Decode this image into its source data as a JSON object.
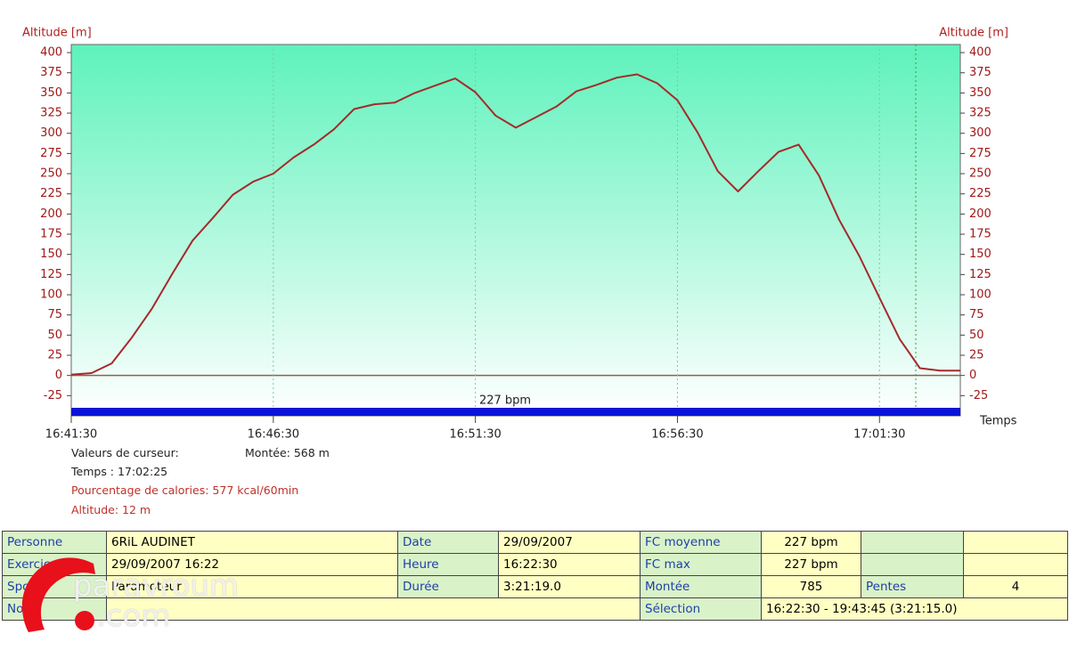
{
  "chart_data": {
    "type": "line",
    "y_label": "Altitude [m]",
    "y2_label": "Altitude [m]",
    "x_label": "Temps",
    "x": [
      "16:41:30",
      "16:42:00",
      "16:42:30",
      "16:43:00",
      "16:43:30",
      "16:44:00",
      "16:44:30",
      "16:45:00",
      "16:45:30",
      "16:46:00",
      "16:46:30",
      "16:47:00",
      "16:47:30",
      "16:48:00",
      "16:48:30",
      "16:49:00",
      "16:49:30",
      "16:50:00",
      "16:50:30",
      "16:51:00",
      "16:51:30",
      "16:52:00",
      "16:52:30",
      "16:53:00",
      "16:53:30",
      "16:54:00",
      "16:54:30",
      "16:55:00",
      "16:55:30",
      "16:56:00",
      "16:56:30",
      "16:57:00",
      "16:57:30",
      "16:58:00",
      "16:58:30",
      "16:59:00",
      "16:59:30",
      "17:00:00",
      "17:00:30",
      "17:01:00",
      "17:01:30",
      "17:02:00",
      "17:02:30",
      "17:03:00",
      "17:03:30"
    ],
    "values": [
      1,
      3,
      15,
      47,
      83,
      126,
      167,
      195,
      224,
      240,
      250,
      270,
      286,
      305,
      330,
      336,
      338,
      350,
      359,
      368,
      351,
      322,
      307,
      320,
      333,
      352,
      360,
      369,
      373,
      362,
      341,
      301,
      253,
      228,
      253,
      277,
      286,
      248,
      193,
      148,
      96,
      45,
      9,
      6,
      6
    ],
    "color": "#a52a2a",
    "xlim": [
      "16:41:30",
      "17:03:30"
    ],
    "xticks": [
      "16:41:30",
      "16:46:30",
      "16:51:30",
      "16:56:30",
      "17:01:30"
    ],
    "ylim": [
      -50,
      410
    ],
    "yticks": [
      -25,
      0,
      25,
      50,
      75,
      100,
      125,
      150,
      175,
      200,
      225,
      250,
      275,
      300,
      325,
      350,
      375,
      400
    ],
    "grid": true,
    "annotation": "227 bpm"
  },
  "cursor": {
    "title": "Valeurs de curseur:",
    "climb": "Montée: 568 m",
    "time": "Temps : 17:02:25",
    "calories": "Pourcentage de calories: 577 kcal/60min",
    "altitude": "Altitude: 12 m"
  },
  "table": {
    "rows": [
      [
        "Personne",
        "6RiL AUDINET",
        "Date",
        "29/09/2007",
        "FC moyenne",
        "227 bpm"
      ],
      [
        "Exercice",
        "29/09/2007 16:22",
        "Heure",
        "16:22:30",
        "FC max",
        "227 bpm"
      ],
      [
        "Sport",
        "Paramoteur",
        "Durée",
        "3:21:19.0",
        "Montée",
        "785",
        "Pentes",
        "4"
      ],
      [
        "Note",
        "Sélection",
        "16:22:30 - 19:43:45 (3:21:15.0)"
      ]
    ]
  },
  "watermark": {
    "name": "paravroum",
    "suffix": ".com"
  }
}
